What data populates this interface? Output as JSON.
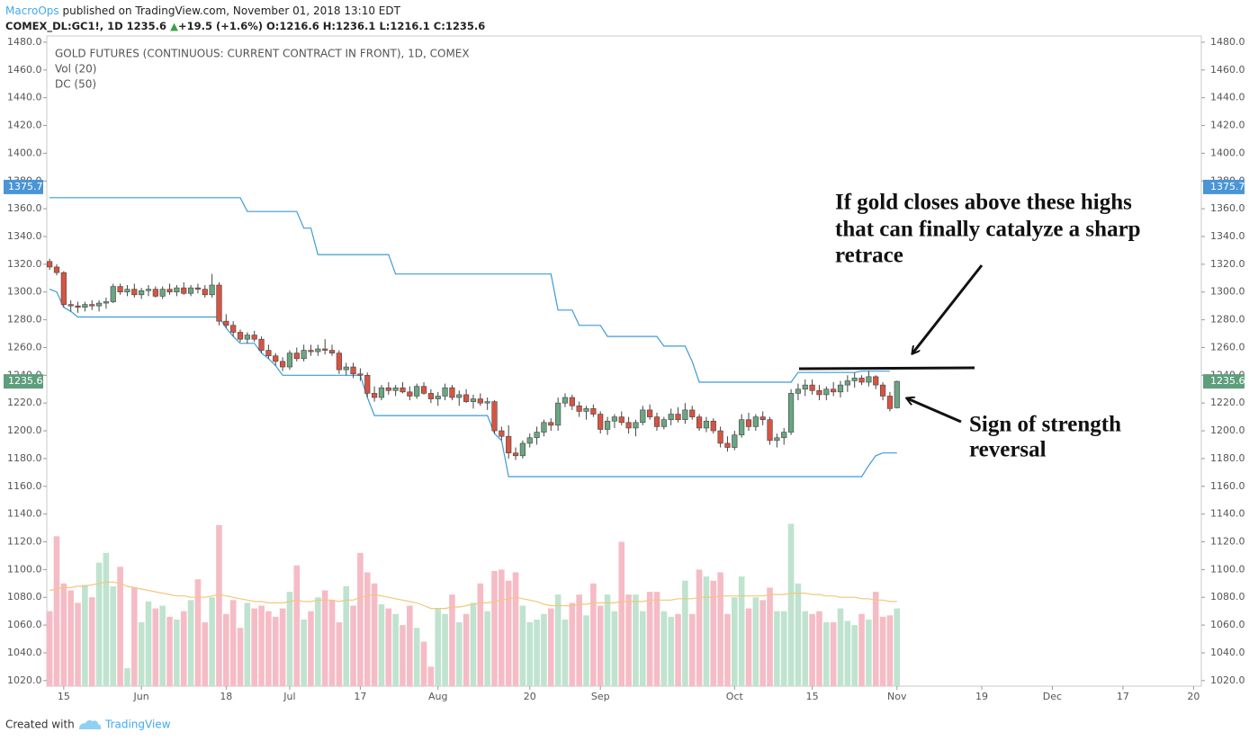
{
  "header": {
    "publisher": "MacroOps",
    "published": "published on TradingView.com, November 01, 2018 13:10 EDT",
    "symbol": "COMEX_DL:GC1!, 1D",
    "last": 1235.6,
    "arrow": "▲",
    "change": "+19.5 (+1.6%)",
    "ohlc": [
      {
        "label": "O:",
        "value": 1216.6
      },
      {
        "label": "H:",
        "value": 1236.1
      },
      {
        "label": "L:",
        "value": 1216.1
      },
      {
        "label": "C:",
        "value": 1235.6
      }
    ]
  },
  "chart_data": {
    "type": "candlestick",
    "legend_title": "GOLD FUTURES (CONTINUOUS: CURRENT CONTRACT IN FRONT), 1D, COMEX",
    "indicators": [
      "Vol (20)",
      "DC (50)"
    ],
    "up_color": "#6ba583",
    "down_color": "#d75442",
    "vol_up_color": "#bfe3cf",
    "vol_down_color": "#f5bcc6",
    "dc_color": "#3b9bd8",
    "vol_ma_color": "#f3c77c",
    "xlim": [
      -0.4,
      163.1
    ],
    "xticks": [
      {
        "value": 2,
        "label": "15"
      },
      {
        "value": 13,
        "label": "Jun"
      },
      {
        "value": 25,
        "label": "18"
      },
      {
        "value": 34,
        "label": "Jul"
      },
      {
        "value": 44,
        "label": "17"
      },
      {
        "value": 55,
        "label": "Aug"
      },
      {
        "value": 68,
        "label": "20"
      },
      {
        "value": 78,
        "label": "Sep"
      },
      {
        "value": 97,
        "label": "Oct"
      },
      {
        "value": 108,
        "label": "15"
      },
      {
        "value": 120,
        "label": "Nov"
      },
      {
        "value": 132,
        "label": "19"
      },
      {
        "value": 142,
        "label": "Dec"
      },
      {
        "value": 152,
        "label": "17"
      },
      {
        "value": 162,
        "label": "20"
      }
    ],
    "ylim": [
      1016,
      1484.5
    ],
    "yticks": [
      {
        "value": 1020,
        "label": "1020.0"
      },
      {
        "value": 1040,
        "label": "1040.0"
      },
      {
        "value": 1060,
        "label": "1060.0"
      },
      {
        "value": 1080,
        "label": "1080.0"
      },
      {
        "value": 1100,
        "label": "1100.0"
      },
      {
        "value": 1120,
        "label": "1120.0"
      },
      {
        "value": 1140,
        "label": "1140.0"
      },
      {
        "value": 1160,
        "label": "1160.0"
      },
      {
        "value": 1180,
        "label": "1180.0"
      },
      {
        "value": 1200,
        "label": "1200.0"
      },
      {
        "value": 1220,
        "label": "1220.0"
      },
      {
        "value": 1240,
        "label": "1240.0"
      },
      {
        "value": 1260,
        "label": "1260.0"
      },
      {
        "value": 1280,
        "label": "1280.0"
      },
      {
        "value": 1300,
        "label": "1300.0"
      },
      {
        "value": 1320,
        "label": "1320.0"
      },
      {
        "value": 1340,
        "label": "1340.0"
      },
      {
        "value": 1360,
        "label": "1360.0"
      },
      {
        "value": 1380,
        "label": "1380.0"
      },
      {
        "value": 1400,
        "label": "1400.0"
      },
      {
        "value": 1420,
        "label": "1420.0"
      },
      {
        "value": 1440,
        "label": "1440.0"
      },
      {
        "value": 1460,
        "label": "1460.0"
      },
      {
        "value": 1480,
        "label": "1480.0"
      }
    ],
    "markers": [
      {
        "value": 1375.7,
        "color": "#4a95d6"
      },
      {
        "value": 1235.6,
        "color": "#5e9e7c"
      }
    ],
    "open": [
      1322,
      1318,
      1314,
      1291,
      1290,
      1289,
      1291,
      1290,
      1292,
      1293,
      1304,
      1300,
      1302,
      1298,
      1301,
      1302,
      1297,
      1302,
      1300,
      1303,
      1299,
      1303,
      1302,
      1298,
      1305,
      1279,
      1276,
      1271,
      1266,
      1269,
      1266,
      1258,
      1254,
      1250,
      1246,
      1256,
      1252,
      1258,
      1257,
      1259,
      1258,
      1256,
      1244,
      1246,
      1241,
      1240,
      1227,
      1224,
      1231,
      1229,
      1231,
      1228,
      1225,
      1232,
      1227,
      1223,
      1225,
      1231,
      1224,
      1226,
      1221,
      1223,
      1220,
      1221,
      1200,
      1196,
      1184,
      1182,
      1191,
      1195,
      1199,
      1206,
      1204,
      1220,
      1224,
      1218,
      1214,
      1216,
      1212,
      1201,
      1207,
      1210,
      1206,
      1202,
      1206,
      1215,
      1210,
      1203,
      1208,
      1212,
      1208,
      1215,
      1210,
      1202,
      1207,
      1200,
      1191,
      1188,
      1197,
      1208,
      1203,
      1210,
      1208,
      1193,
      1195,
      1199,
      1227,
      1230,
      1233,
      1229,
      1226,
      1230,
      1228,
      1233,
      1236,
      1238,
      1235,
      1239,
      1233,
      1225,
      1216.6
    ],
    "high": [
      1324,
      1320,
      1315,
      1294,
      1293,
      1293,
      1294,
      1294,
      1296,
      1306,
      1306,
      1305,
      1306,
      1303,
      1305,
      1304,
      1304,
      1306,
      1305,
      1307,
      1305,
      1306,
      1305,
      1313,
      1307,
      1284,
      1279,
      1273,
      1271,
      1272,
      1268,
      1262,
      1256,
      1253,
      1258,
      1260,
      1262,
      1262,
      1262,
      1266,
      1262,
      1258,
      1249,
      1249,
      1245,
      1242,
      1232,
      1233,
      1235,
      1233,
      1235,
      1232,
      1234,
      1235,
      1230,
      1228,
      1234,
      1233,
      1229,
      1230,
      1226,
      1227,
      1224,
      1222,
      1203,
      1204,
      1188,
      1193,
      1198,
      1203,
      1208,
      1209,
      1224,
      1227,
      1226,
      1221,
      1218,
      1219,
      1214,
      1210,
      1212,
      1214,
      1210,
      1208,
      1218,
      1219,
      1213,
      1210,
      1216,
      1217,
      1220,
      1218,
      1212,
      1210,
      1209,
      1203,
      1196,
      1200,
      1212,
      1213,
      1212,
      1214,
      1210,
      1198,
      1202,
      1230,
      1234,
      1237,
      1237,
      1233,
      1232,
      1235,
      1236,
      1240,
      1242,
      1240,
      1243,
      1240,
      1235,
      1228,
      1236.1
    ],
    "low": [
      1316,
      1312,
      1289,
      1286,
      1285,
      1286,
      1287,
      1286,
      1288,
      1292,
      1298,
      1297,
      1296,
      1295,
      1297,
      1296,
      1295,
      1298,
      1297,
      1298,
      1297,
      1299,
      1296,
      1296,
      1276,
      1274,
      1268,
      1264,
      1263,
      1264,
      1256,
      1252,
      1247,
      1243,
      1244,
      1250,
      1250,
      1254,
      1254,
      1255,
      1254,
      1241,
      1240,
      1238,
      1236,
      1224,
      1221,
      1222,
      1226,
      1225,
      1227,
      1222,
      1223,
      1226,
      1220,
      1218,
      1222,
      1222,
      1218,
      1220,
      1216,
      1218,
      1215,
      1198,
      1193,
      1180,
      1179,
      1180,
      1188,
      1190,
      1196,
      1200,
      1200,
      1217,
      1215,
      1210,
      1208,
      1210,
      1198,
      1197,
      1202,
      1204,
      1198,
      1196,
      1204,
      1208,
      1200,
      1201,
      1204,
      1206,
      1205,
      1208,
      1200,
      1199,
      1198,
      1188,
      1185,
      1186,
      1195,
      1200,
      1200,
      1204,
      1190,
      1188,
      1190,
      1197,
      1222,
      1225,
      1226,
      1222,
      1222,
      1225,
      1224,
      1228,
      1231,
      1233,
      1232,
      1230,
      1222,
      1214,
      1216.1
    ],
    "close": [
      1318,
      1314,
      1291,
      1290,
      1289,
      1291,
      1290,
      1292,
      1293,
      1304,
      1300,
      1302,
      1298,
      1301,
      1302,
      1297,
      1302,
      1300,
      1303,
      1299,
      1303,
      1302,
      1298,
      1305,
      1279,
      1276,
      1271,
      1266,
      1269,
      1266,
      1258,
      1254,
      1250,
      1246,
      1256,
      1252,
      1258,
      1257,
      1259,
      1258,
      1256,
      1244,
      1246,
      1241,
      1240,
      1227,
      1224,
      1231,
      1229,
      1231,
      1228,
      1225,
      1232,
      1227,
      1223,
      1225,
      1231,
      1224,
      1226,
      1221,
      1223,
      1220,
      1221,
      1200,
      1196,
      1184,
      1182,
      1191,
      1195,
      1199,
      1206,
      1204,
      1220,
      1224,
      1218,
      1214,
      1216,
      1212,
      1201,
      1207,
      1210,
      1206,
      1202,
      1206,
      1215,
      1210,
      1203,
      1208,
      1212,
      1208,
      1215,
      1210,
      1202,
      1207,
      1200,
      1191,
      1188,
      1197,
      1208,
      1203,
      1210,
      1208,
      1193,
      1195,
      1199,
      1227,
      1230,
      1233,
      1229,
      1226,
      1230,
      1228,
      1233,
      1236,
      1238,
      1235,
      1239,
      1233,
      1225,
      1216,
      1235.6
    ],
    "volume": [
      1070,
      1124,
      1090,
      1085,
      1076,
      1089,
      1080,
      1105,
      1112,
      1088,
      1102,
      1029,
      1087,
      1062,
      1077,
      1072,
      1074,
      1066,
      1064,
      1070,
      1078,
      1093,
      1062,
      1080,
      1132,
      1068,
      1078,
      1058,
      1076,
      1072,
      1074,
      1070,
      1066,
      1072,
      1084,
      1103,
      1064,
      1070,
      1080,
      1085,
      1078,
      1062,
      1088,
      1074,
      1112,
      1098,
      1090,
      1075,
      1072,
      1068,
      1060,
      1074,
      1058,
      1048,
      1030,
      1072,
      1068,
      1082,
      1062,
      1068,
      1076,
      1090,
      1070,
      1099,
      1100,
      1092,
      1098,
      1074,
      1062,
      1064,
      1068,
      1072,
      1082,
      1064,
      1076,
      1082,
      1067,
      1090,
      1074,
      1082,
      1070,
      1120,
      1082,
      1082,
      1070,
      1084,
      1084,
      1070,
      1066,
      1068,
      1092,
      1068,
      1100,
      1095,
      1092,
      1098,
      1068,
      1080,
      1095,
      1072,
      1080,
      1078,
      1087,
      1070,
      1070,
      1133,
      1090,
      1070,
      1068,
      1070,
      1062,
      1062,
      1072,
      1063,
      1060,
      1068,
      1064,
      1084,
      1066,
      1067,
      1072
    ],
    "vol_ma": [
      1085,
      1086,
      1087,
      1087,
      1088,
      1088,
      1089,
      1090,
      1091,
      1091,
      1090,
      1088,
      1087,
      1086,
      1085,
      1084,
      1083,
      1082,
      1081,
      1081,
      1080,
      1080,
      1080,
      1081,
      1082,
      1081,
      1080,
      1079,
      1078,
      1077,
      1077,
      1076,
      1076,
      1076,
      1077,
      1078,
      1077,
      1077,
      1078,
      1078,
      1078,
      1077,
      1078,
      1078,
      1080,
      1081,
      1082,
      1081,
      1080,
      1079,
      1078,
      1077,
      1076,
      1074,
      1072,
      1072,
      1072,
      1073,
      1073,
      1074,
      1075,
      1076,
      1076,
      1077,
      1078,
      1079,
      1080,
      1079,
      1078,
      1077,
      1075,
      1074,
      1074,
      1074,
      1074,
      1075,
      1075,
      1076,
      1076,
      1076,
      1076,
      1077,
      1077,
      1077,
      1077,
      1078,
      1078,
      1078,
      1078,
      1079,
      1079,
      1079,
      1080,
      1080,
      1080,
      1081,
      1081,
      1081,
      1081,
      1081,
      1081,
      1081,
      1082,
      1082,
      1082,
      1083,
      1083,
      1083,
      1082,
      1082,
      1081,
      1081,
      1080,
      1080,
      1080,
      1079,
      1079,
      1078,
      1078,
      1077,
      1077
    ],
    "dc_upper": [
      1368,
      1368,
      1368,
      1368,
      1368,
      1368,
      1368,
      1368,
      1368,
      1368,
      1368,
      1368,
      1368,
      1368,
      1368,
      1368,
      1368,
      1368,
      1368,
      1368,
      1368,
      1368,
      1368,
      1368,
      1368,
      1368,
      1368,
      1368,
      1358,
      1358,
      1358,
      1358,
      1358,
      1358,
      1358,
      1358,
      1346,
      1346,
      1327,
      1327,
      1327,
      1327,
      1327,
      1327,
      1327,
      1327,
      1327,
      1327,
      1327,
      1313,
      1313,
      1313,
      1313,
      1313,
      1313,
      1313,
      1313,
      1313,
      1313,
      1313,
      1313,
      1313,
      1313,
      1313,
      1313,
      1313,
      1313,
      1313,
      1313,
      1313,
      1313,
      1313,
      1287,
      1287,
      1287,
      1276,
      1276,
      1276,
      1276,
      1268,
      1268,
      1268,
      1268,
      1268,
      1268,
      1268,
      1268,
      1261,
      1261,
      1261,
      1261,
      1250,
      1235,
      1235,
      1235,
      1235,
      1235,
      1235,
      1235,
      1235,
      1235,
      1235,
      1235,
      1235,
      1235,
      1235,
      1242,
      1242,
      1242,
      1242,
      1242,
      1242,
      1242,
      1242,
      1242,
      1243,
      1243,
      1243,
      1243,
      1243
    ],
    "dc_lower": [
      1302,
      1300,
      1289,
      1286,
      1282,
      1282,
      1282,
      1282,
      1282,
      1282,
      1282,
      1282,
      1282,
      1282,
      1282,
      1282,
      1282,
      1282,
      1282,
      1282,
      1282,
      1282,
      1282,
      1282,
      1282,
      1274,
      1268,
      1263,
      1263,
      1263,
      1256,
      1252,
      1247,
      1240,
      1240,
      1240,
      1240,
      1240,
      1240,
      1240,
      1240,
      1240,
      1240,
      1240,
      1240,
      1224,
      1211,
      1211,
      1211,
      1211,
      1211,
      1211,
      1211,
      1211,
      1211,
      1211,
      1211,
      1211,
      1211,
      1211,
      1211,
      1211,
      1211,
      1198,
      1193,
      1167,
      1167,
      1167,
      1167,
      1167,
      1167,
      1167,
      1167,
      1167,
      1167,
      1167,
      1167,
      1167,
      1167,
      1167,
      1167,
      1167,
      1167,
      1167,
      1167,
      1167,
      1167,
      1167,
      1167,
      1167,
      1167,
      1167,
      1167,
      1167,
      1167,
      1167,
      1167,
      1167,
      1167,
      1167,
      1167,
      1167,
      1167,
      1167,
      1167,
      1167,
      1167,
      1167,
      1167,
      1167,
      1167,
      1167,
      1167,
      1167,
      1167,
      1167,
      1175,
      1182,
      1184,
      1184,
      1184
    ],
    "annotations": {
      "highs": [
        "If gold closes above these highs",
        "that can finally catalyze a sharp",
        "retrace"
      ],
      "reversal": [
        "Sign of strength",
        "reversal"
      ]
    }
  },
  "footer": {
    "created": "Created with",
    "brand": "TradingView"
  }
}
